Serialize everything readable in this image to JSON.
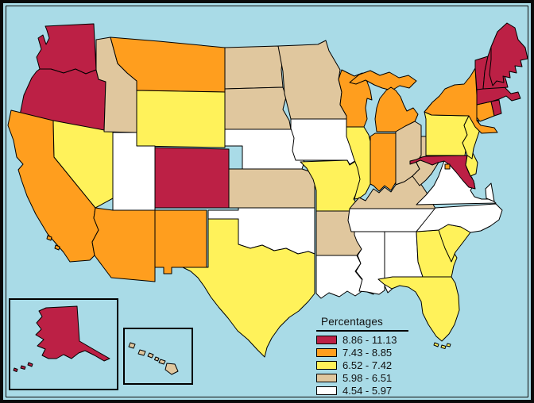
{
  "map_data": {
    "type": "choropleth_map",
    "region": "United States",
    "water_color": "#A9DBE7",
    "border_color": "#000000",
    "legend": {
      "title": "Percentages",
      "position": "bottom-right",
      "classes": [
        {
          "label": "8.86 - 11.13",
          "color": "#BC2045"
        },
        {
          "label": "7.43 - 8.85",
          "color": "#FF9E1E"
        },
        {
          "label": "6.52 - 7.42",
          "color": "#FFF25A"
        },
        {
          "label": "5.98 - 6.51",
          "color": "#E0C79E"
        },
        {
          "label": "4.54 - 5.97",
          "color": "#FFFFFF"
        }
      ]
    },
    "insets": [
      {
        "id": "AK",
        "name": "Alaska inset"
      },
      {
        "id": "HI",
        "name": "Hawaii inset"
      }
    ],
    "states": [
      {
        "id": "WA",
        "name": "Washington",
        "cls": 0
      },
      {
        "id": "OR",
        "name": "Oregon",
        "cls": 0
      },
      {
        "id": "CA",
        "name": "California",
        "cls": 1
      },
      {
        "id": "NV",
        "name": "Nevada",
        "cls": 2
      },
      {
        "id": "ID",
        "name": "Idaho",
        "cls": 3
      },
      {
        "id": "MT",
        "name": "Montana",
        "cls": 1
      },
      {
        "id": "WY",
        "name": "Wyoming",
        "cls": 2
      },
      {
        "id": "UT",
        "name": "Utah",
        "cls": 4
      },
      {
        "id": "CO",
        "name": "Colorado",
        "cls": 0
      },
      {
        "id": "AZ",
        "name": "Arizona",
        "cls": 1
      },
      {
        "id": "NM",
        "name": "New Mexico",
        "cls": 1
      },
      {
        "id": "ND",
        "name": "North Dakota",
        "cls": 3
      },
      {
        "id": "SD",
        "name": "South Dakota",
        "cls": 3
      },
      {
        "id": "NE",
        "name": "Nebraska",
        "cls": 4
      },
      {
        "id": "KS",
        "name": "Kansas",
        "cls": 3
      },
      {
        "id": "OK",
        "name": "Oklahoma",
        "cls": 4
      },
      {
        "id": "TX",
        "name": "Texas",
        "cls": 2
      },
      {
        "id": "MN",
        "name": "Minnesota",
        "cls": 3
      },
      {
        "id": "IA",
        "name": "Iowa",
        "cls": 4
      },
      {
        "id": "MO",
        "name": "Missouri",
        "cls": 2
      },
      {
        "id": "AR",
        "name": "Arkansas",
        "cls": 3
      },
      {
        "id": "LA",
        "name": "Louisiana",
        "cls": 4
      },
      {
        "id": "WI",
        "name": "Wisconsin",
        "cls": 1
      },
      {
        "id": "IL",
        "name": "Illinois",
        "cls": 2
      },
      {
        "id": "MI",
        "name": "Michigan",
        "cls": 1
      },
      {
        "id": "IN",
        "name": "Indiana",
        "cls": 1
      },
      {
        "id": "OH",
        "name": "Ohio",
        "cls": 3
      },
      {
        "id": "KY",
        "name": "Kentucky",
        "cls": 3
      },
      {
        "id": "TN",
        "name": "Tennessee",
        "cls": 4
      },
      {
        "id": "MS",
        "name": "Mississippi",
        "cls": 4
      },
      {
        "id": "AL",
        "name": "Alabama",
        "cls": 4
      },
      {
        "id": "GA",
        "name": "Georgia",
        "cls": 2
      },
      {
        "id": "FL",
        "name": "Florida",
        "cls": 2
      },
      {
        "id": "SC",
        "name": "South Carolina",
        "cls": 2
      },
      {
        "id": "NC",
        "name": "North Carolina",
        "cls": 4
      },
      {
        "id": "VA",
        "name": "Virginia",
        "cls": 4
      },
      {
        "id": "WV",
        "name": "West Virginia",
        "cls": 3
      },
      {
        "id": "MD",
        "name": "Maryland",
        "cls": 0
      },
      {
        "id": "DE",
        "name": "Delaware",
        "cls": 2
      },
      {
        "id": "DC",
        "name": "District of Columbia",
        "cls": 1
      },
      {
        "id": "PA",
        "name": "Pennsylvania",
        "cls": 2
      },
      {
        "id": "NJ",
        "name": "New Jersey",
        "cls": 2
      },
      {
        "id": "NY",
        "name": "New York",
        "cls": 1
      },
      {
        "id": "CT",
        "name": "Connecticut",
        "cls": 1
      },
      {
        "id": "RI",
        "name": "Rhode Island",
        "cls": 0
      },
      {
        "id": "MA",
        "name": "Massachusetts",
        "cls": 0
      },
      {
        "id": "VT",
        "name": "Vermont",
        "cls": 0
      },
      {
        "id": "NH",
        "name": "New Hampshire",
        "cls": 0
      },
      {
        "id": "ME",
        "name": "Maine",
        "cls": 0
      },
      {
        "id": "AK",
        "name": "Alaska",
        "cls": 0
      },
      {
        "id": "HI",
        "name": "Hawaii",
        "cls": 3
      }
    ]
  }
}
